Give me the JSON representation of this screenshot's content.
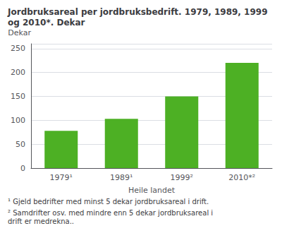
{
  "chart_data": {
    "type": "bar",
    "title": "Jordbruksareal per jordbruksbedrift. 1979, 1989, 1999 og 2010*. Dekar",
    "ylabel": "Dekar",
    "xlabel": "Heile landet",
    "categories": [
      "1979¹",
      "1989¹",
      "1999²",
      "2010*²"
    ],
    "values": [
      78,
      103,
      150,
      220
    ],
    "color": "#4db024",
    "ylim": [
      0,
      260
    ],
    "yticks": [
      0,
      50,
      100,
      150,
      200,
      250
    ],
    "grid": true,
    "annotations": [
      "¹ Gjeld bedrifter med minst 5 dekar jordbruksareal i drift.",
      "² Samdrifter osv. med mindre enn 5 dekar jordbruksareal i drift er medrekna.."
    ]
  }
}
